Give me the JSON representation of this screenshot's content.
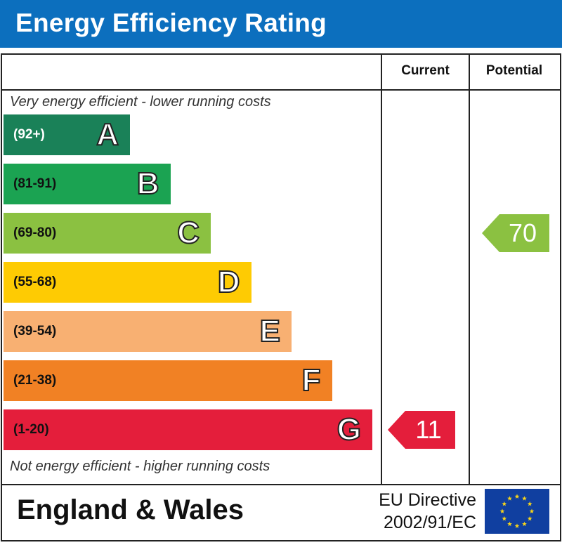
{
  "title": "Energy Efficiency Rating",
  "columns": {
    "current": "Current",
    "potential": "Potential"
  },
  "notes": {
    "top": "Very energy efficient - lower running costs",
    "bottom": "Not energy efficient - higher running costs"
  },
  "chart_data": {
    "type": "bar",
    "title": "Energy Efficiency Rating",
    "bands": [
      {
        "letter": "A",
        "range": "(92+)",
        "min": 92,
        "max": 100,
        "color": "#1a8158"
      },
      {
        "letter": "B",
        "range": "(81-91)",
        "min": 81,
        "max": 91,
        "color": "#1ba352"
      },
      {
        "letter": "C",
        "range": "(69-80)",
        "min": 69,
        "max": 80,
        "color": "#8bc141"
      },
      {
        "letter": "D",
        "range": "(55-68)",
        "min": 55,
        "max": 68,
        "color": "#fecb03"
      },
      {
        "letter": "E",
        "range": "(39-54)",
        "min": 39,
        "max": 54,
        "color": "#f8b072"
      },
      {
        "letter": "F",
        "range": "(21-38)",
        "min": 21,
        "max": 38,
        "color": "#f18124"
      },
      {
        "letter": "G",
        "range": "(1-20)",
        "min": 1,
        "max": 20,
        "color": "#e41e3b"
      }
    ],
    "current": {
      "value": 11,
      "label": "11",
      "band": "G",
      "color": "#e41e3b"
    },
    "potential": {
      "value": 70,
      "label": "70",
      "band": "C",
      "color": "#8bc141"
    }
  },
  "footer": {
    "region": "England & Wales",
    "directive_line1": "EU Directive",
    "directive_line2": "2002/91/EC"
  }
}
